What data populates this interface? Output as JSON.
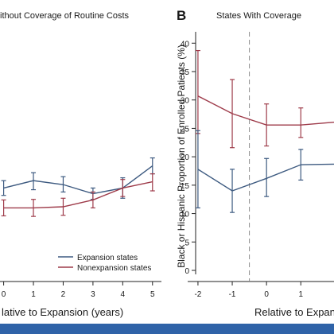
{
  "colors": {
    "expansion": "#3d5a80",
    "nonexpansion": "#9e3b4a",
    "axis": "#222222",
    "strip": "#2f63a8",
    "dashed": "#8a8a8a"
  },
  "chart_data": [
    {
      "type": "line",
      "panel_letter": "",
      "title": "ithout Coverage of Routine Costs",
      "xlabel": "lative to Expansion (years)",
      "ylabel": "",
      "x": [
        0,
        1,
        2,
        3,
        4,
        5
      ],
      "xlim": [
        -0.55,
        5.3
      ],
      "ylim": [
        -0.7,
        42
      ],
      "tick_labels_x": [
        "0",
        "1",
        "2",
        "3",
        "4",
        "5"
      ],
      "series": [
        {
          "name": "Expansion states",
          "color_key": "expansion",
          "values": [
            14.5,
            15.8,
            15.1,
            13.5,
            14.5,
            18.4
          ],
          "ci_low": [
            13.2,
            14.2,
            13.8,
            12.5,
            12.7,
            17.0
          ],
          "ci_high": [
            15.8,
            17.2,
            16.5,
            14.5,
            16.3,
            19.8
          ]
        },
        {
          "name": "Nonexpansion states",
          "color_key": "nonexpansion",
          "values": [
            11.0,
            11.0,
            11.2,
            12.4,
            14.5,
            15.6
          ],
          "ci_low": [
            9.6,
            9.5,
            9.7,
            11.0,
            13.0,
            14.0
          ],
          "ci_high": [
            12.4,
            12.5,
            12.7,
            13.8,
            16.0,
            17.0
          ]
        }
      ],
      "legend": {
        "placement": "bottom-right",
        "entries": [
          "Expansion states",
          "Nonexpansion states"
        ]
      }
    },
    {
      "type": "line",
      "panel_letter": "B",
      "title": "States With Coverage",
      "xlabel": "Relative to Expan",
      "ylabel": "Black or Hispanic Proportion of Enrolled Patients (%)",
      "x": [
        -2,
        -1,
        0,
        1,
        2
      ],
      "xlim": [
        -2.3,
        2.2
      ],
      "ylim": [
        -0.7,
        42
      ],
      "yticks": [
        0,
        5,
        10,
        15,
        20,
        25,
        30,
        35,
        40
      ],
      "tick_labels_x": [
        "-2",
        "-1",
        "0",
        "1"
      ],
      "reference_line_x": -0.5,
      "series": [
        {
          "color_key": "nonexpansion",
          "values": [
            30.7,
            27.6,
            25.6,
            25.6,
            26.1
          ],
          "ci_low": [
            24.1,
            21.6,
            21.9,
            23.4,
            null
          ],
          "ci_high": [
            38.7,
            33.6,
            29.3,
            28.6,
            null
          ]
        },
        {
          "color_key": "expansion",
          "values": [
            17.8,
            14.0,
            16.2,
            18.6,
            18.7
          ],
          "ci_low": [
            11.0,
            10.2,
            13.0,
            15.9,
            null
          ],
          "ci_high": [
            24.6,
            17.8,
            19.7,
            21.3,
            null
          ]
        }
      ]
    }
  ]
}
